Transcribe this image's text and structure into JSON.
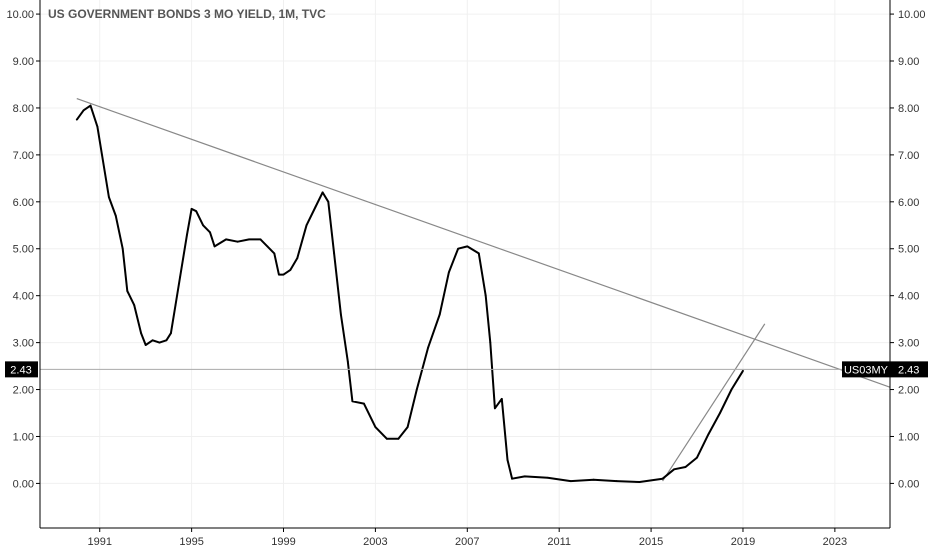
{
  "chart_data": {
    "type": "line",
    "title": "US GOVERNMENT BONDS 3 MO YIELD, 1M, TVC",
    "symbol": "US03MY",
    "last_value_label": "2.43",
    "last_value": 2.43,
    "xlim": [
      1988.4,
      2025.4
    ],
    "ylim": [
      -0.95,
      10.3
    ],
    "x_ticks": [
      1991,
      1995,
      1999,
      2003,
      2007,
      2011,
      2015,
      2019,
      2023
    ],
    "x_tick_labels": [
      "1991",
      "1995",
      "1999",
      "2003",
      "2007",
      "2011",
      "2015",
      "2019",
      "2023"
    ],
    "y_ticks": [
      0,
      1,
      2,
      3,
      4,
      5,
      6,
      7,
      8,
      9,
      10
    ],
    "y_tick_labels": [
      "0.00",
      "1.00",
      "2.00",
      "3.00",
      "4.00",
      "5.00",
      "6.00",
      "7.00",
      "8.00",
      "9.00",
      "10.00"
    ],
    "grid": true,
    "series": [
      {
        "points": [
          [
            1990.0,
            7.75
          ],
          [
            1990.3,
            7.95
          ],
          [
            1990.6,
            8.05
          ],
          [
            1990.9,
            7.6
          ],
          [
            1991.1,
            7.0
          ],
          [
            1991.4,
            6.1
          ],
          [
            1991.7,
            5.7
          ],
          [
            1992.0,
            5.0
          ],
          [
            1992.2,
            4.1
          ],
          [
            1992.5,
            3.8
          ],
          [
            1992.8,
            3.2
          ],
          [
            1993.0,
            2.95
          ],
          [
            1993.3,
            3.05
          ],
          [
            1993.6,
            3.0
          ],
          [
            1993.9,
            3.05
          ],
          [
            1994.1,
            3.2
          ],
          [
            1994.3,
            3.8
          ],
          [
            1994.5,
            4.4
          ],
          [
            1994.8,
            5.3
          ],
          [
            1995.0,
            5.85
          ],
          [
            1995.2,
            5.8
          ],
          [
            1995.5,
            5.5
          ],
          [
            1995.8,
            5.35
          ],
          [
            1996.0,
            5.05
          ],
          [
            1996.5,
            5.2
          ],
          [
            1997.0,
            5.15
          ],
          [
            1997.5,
            5.2
          ],
          [
            1998.0,
            5.2
          ],
          [
            1998.3,
            5.05
          ],
          [
            1998.6,
            4.9
          ],
          [
            1998.8,
            4.45
          ],
          [
            1999.0,
            4.45
          ],
          [
            1999.3,
            4.55
          ],
          [
            1999.6,
            4.8
          ],
          [
            2000.0,
            5.5
          ],
          [
            2000.4,
            5.9
          ],
          [
            2000.7,
            6.2
          ],
          [
            2000.95,
            6.0
          ],
          [
            2001.2,
            4.9
          ],
          [
            2001.5,
            3.6
          ],
          [
            2001.8,
            2.6
          ],
          [
            2002.0,
            1.75
          ],
          [
            2002.5,
            1.7
          ],
          [
            2003.0,
            1.2
          ],
          [
            2003.5,
            0.95
          ],
          [
            2004.0,
            0.95
          ],
          [
            2004.4,
            1.2
          ],
          [
            2004.8,
            2.0
          ],
          [
            2005.3,
            2.9
          ],
          [
            2005.8,
            3.6
          ],
          [
            2006.2,
            4.5
          ],
          [
            2006.6,
            5.0
          ],
          [
            2007.0,
            5.05
          ],
          [
            2007.5,
            4.9
          ],
          [
            2007.8,
            4.0
          ],
          [
            2008.0,
            3.0
          ],
          [
            2008.2,
            1.6
          ],
          [
            2008.5,
            1.8
          ],
          [
            2008.75,
            0.5
          ],
          [
            2008.95,
            0.1
          ],
          [
            2009.5,
            0.15
          ],
          [
            2010.5,
            0.12
          ],
          [
            2011.5,
            0.05
          ],
          [
            2012.5,
            0.08
          ],
          [
            2013.5,
            0.05
          ],
          [
            2014.5,
            0.03
          ],
          [
            2015.5,
            0.1
          ],
          [
            2016.0,
            0.3
          ],
          [
            2016.5,
            0.35
          ],
          [
            2017.0,
            0.55
          ],
          [
            2017.5,
            1.05
          ],
          [
            2018.0,
            1.5
          ],
          [
            2018.5,
            2.0
          ],
          [
            2019.0,
            2.4
          ]
        ]
      }
    ],
    "trendlines": [
      {
        "from": [
          1990.0,
          8.2
        ],
        "to": [
          2025.4,
          2.05
        ]
      },
      {
        "from": [
          2015.5,
          0.05
        ],
        "to": [
          2019.95,
          3.4
        ]
      }
    ],
    "horizontal_line": 2.43
  }
}
